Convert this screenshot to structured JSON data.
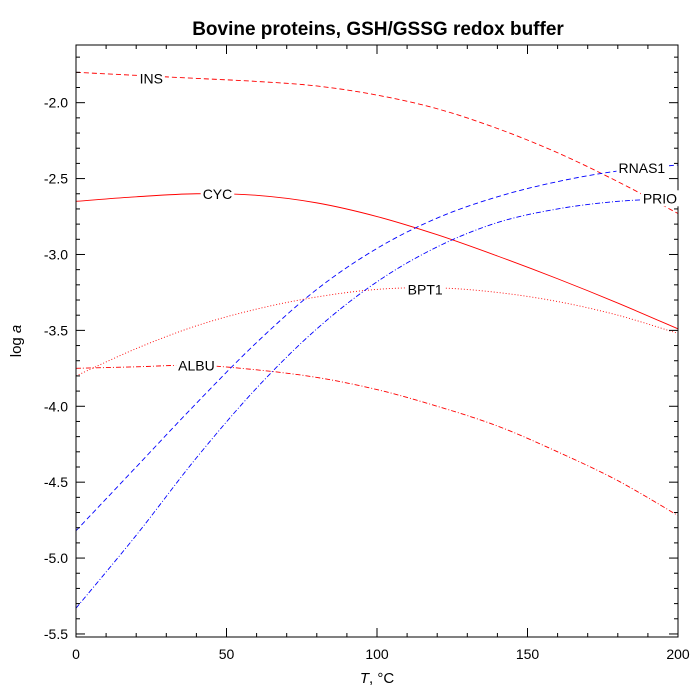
{
  "chart_data": {
    "type": "line",
    "title": "Bovine proteins, GSH/GSSG redox buffer",
    "xlabel": {
      "italic": "T",
      "rest": ", °C"
    },
    "ylabel": {
      "plain": "log ",
      "italic": "a"
    },
    "xlim": [
      0,
      200
    ],
    "ylim": [
      -5.52,
      -1.62
    ],
    "x_ticks": [
      0,
      50,
      100,
      150,
      200
    ],
    "x_tick_labels": [
      "0",
      "50",
      "100",
      "150",
      "200"
    ],
    "y_ticks": [
      -2.0,
      -2.5,
      -3.0,
      -3.5,
      -4.0,
      -4.5,
      -5.0,
      -5.5
    ],
    "y_tick_labels": [
      "-2.0",
      "-2.5",
      "-3.0",
      "-3.5",
      "-4.0",
      "-4.5",
      "-5.0",
      "-5.5"
    ],
    "grid": false,
    "series": [
      {
        "name": "INS",
        "color": "#ff0000",
        "dash": "5,3",
        "label_x": 25,
        "label_y": -1.84,
        "x": [
          0,
          20,
          40,
          60,
          80,
          100,
          120,
          140,
          160,
          180,
          200
        ],
        "y": [
          -1.8,
          -1.82,
          -1.84,
          -1.86,
          -1.89,
          -1.95,
          -2.04,
          -2.17,
          -2.33,
          -2.52,
          -2.73
        ]
      },
      {
        "name": "CYC",
        "color": "#ff0000",
        "dash": "",
        "label_x": 47,
        "label_y": -2.6,
        "x": [
          0,
          20,
          40,
          60,
          80,
          100,
          120,
          140,
          160,
          180,
          200
        ],
        "y": [
          -2.65,
          -2.62,
          -2.6,
          -2.61,
          -2.66,
          -2.75,
          -2.87,
          -3.01,
          -3.16,
          -3.32,
          -3.49
        ]
      },
      {
        "name": "BPT1",
        "color": "#ff0000",
        "dash": "1,2",
        "label_x": 116,
        "label_y": -3.23,
        "x": [
          0,
          20,
          40,
          60,
          80,
          100,
          120,
          140,
          160,
          180,
          200
        ],
        "y": [
          -3.8,
          -3.62,
          -3.47,
          -3.36,
          -3.28,
          -3.23,
          -3.22,
          -3.25,
          -3.31,
          -3.4,
          -3.52
        ]
      },
      {
        "name": "ALBU",
        "color": "#ff0000",
        "dash": "5,2,1,2",
        "label_x": 40,
        "label_y": -3.73,
        "x": [
          0,
          20,
          40,
          60,
          80,
          100,
          120,
          140,
          160,
          180,
          200
        ],
        "y": [
          -3.75,
          -3.74,
          -3.73,
          -3.76,
          -3.81,
          -3.89,
          -4.0,
          -4.13,
          -4.3,
          -4.49,
          -4.72
        ]
      },
      {
        "name": "RNAS1",
        "color": "#0000ff",
        "dash": "5,3",
        "label_x": 188,
        "label_y": -2.43,
        "x": [
          0,
          20,
          40,
          60,
          80,
          100,
          120,
          140,
          160,
          180,
          200
        ],
        "y": [
          -4.82,
          -4.4,
          -3.98,
          -3.58,
          -3.23,
          -2.96,
          -2.76,
          -2.62,
          -2.52,
          -2.45,
          -2.41
        ]
      },
      {
        "name": "PRIO",
        "color": "#0000ff",
        "dash": "5,2,1,2",
        "label_x": 194,
        "label_y": -2.63,
        "x": [
          0,
          20,
          40,
          60,
          80,
          100,
          120,
          140,
          160,
          180,
          200
        ],
        "y": [
          -5.33,
          -4.85,
          -4.34,
          -3.88,
          -3.49,
          -3.18,
          -2.95,
          -2.79,
          -2.7,
          -2.65,
          -2.63
        ]
      }
    ]
  }
}
